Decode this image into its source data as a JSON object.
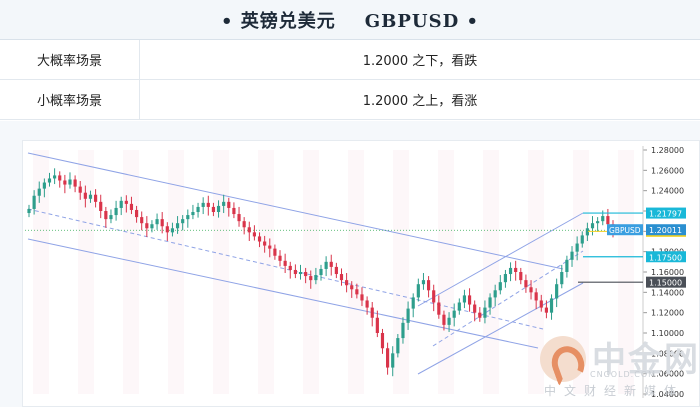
{
  "header": {
    "title": "• 英镑兑美元    GBPUSD •"
  },
  "scenarios": [
    {
      "name": "大概率场景",
      "desc": "1.2000 之下，看跌"
    },
    {
      "name": "小概率场景",
      "desc": "1.2000 之上，看涨"
    }
  ],
  "chart_data": {
    "type": "candlestick",
    "symbol": "GBPUSD",
    "current_price": "1.20011",
    "ylim": [
      1.04,
      1.28
    ],
    "y_ticks": [
      "1.28000",
      "1.26000",
      "1.24000",
      "1.22000",
      "1.20000",
      "1.18000",
      "1.16000",
      "1.14000",
      "1.12000",
      "1.10000",
      "1.08000",
      "1.06000",
      "1.04000"
    ],
    "levels": [
      {
        "label": "1.21797",
        "value": 1.21797,
        "color": "#19b8d8"
      },
      {
        "label": "1.20000",
        "value": 1.2,
        "color": "#f2d021"
      },
      {
        "label": "1.17500",
        "value": 1.175,
        "color": "#19b8d8"
      },
      {
        "label": "1.15000",
        "value": 1.15,
        "color": "#4a4f57"
      }
    ],
    "colors": {
      "up": "#2e9e8c",
      "down": "#d9344a",
      "channel": "#7a8fe0"
    }
  },
  "watermark": {
    "brand": "中金网",
    "url": "CNGOLD.COM",
    "slogan": "中文财经新媒体"
  }
}
